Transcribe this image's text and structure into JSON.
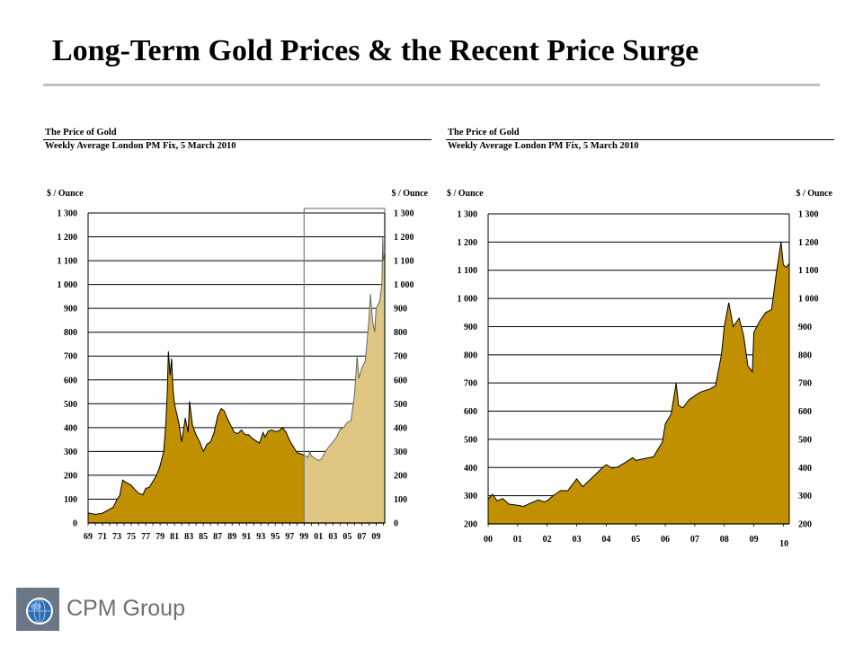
{
  "slide": {
    "title": "Long-Term Gold Prices & the Recent Price Surge"
  },
  "colors": {
    "gold_fill": "#c09000",
    "gold_fill_light": "#dfc683",
    "highlight_box": "#7f7f7f",
    "title_rule": "#bfbfbf",
    "logo_square": "#6b7785",
    "logo_globe": "#2f6db3",
    "logo_text": "#6b6f73"
  },
  "logo": {
    "text": "CPM Group",
    "icon": "globe-icon"
  },
  "chart_data": [
    {
      "type": "area",
      "title": "The Price of Gold",
      "subtitle": "Weekly Average London PM Fix, 5 March 2010",
      "ylabel_left": "$ / Ounce",
      "ylabel_right": "$ / Ounce",
      "ylim": [
        0,
        1300
      ],
      "yticks": [
        0,
        100,
        200,
        300,
        400,
        500,
        600,
        700,
        800,
        900,
        1000,
        1100,
        1200,
        1300
      ],
      "ytick_labels": [
        "0",
        "100",
        "200",
        "300",
        "400",
        "500",
        "600",
        "700",
        "800",
        "900",
        "1 000",
        "1 100",
        "1 200",
        "1 300"
      ],
      "xlim": [
        1969,
        2010.2
      ],
      "xtick_labels": [
        "69",
        "71",
        "73",
        "75",
        "77",
        "79",
        "81",
        "83",
        "85",
        "87",
        "89",
        "91",
        "93",
        "95",
        "97",
        "99",
        "01",
        "03",
        "05",
        "07",
        "09"
      ],
      "grid": true,
      "highlight": {
        "x_from": 1999.0,
        "x_to": 2010.2
      },
      "x": [
        1969.0,
        1970.0,
        1971.0,
        1972.0,
        1972.5,
        1973.0,
        1973.4,
        1973.8,
        1974.3,
        1974.9,
        1975.5,
        1976.0,
        1976.6,
        1977.0,
        1977.5,
        1978.0,
        1978.5,
        1979.0,
        1979.5,
        1979.8,
        1980.0,
        1980.15,
        1980.4,
        1980.6,
        1980.8,
        1981.0,
        1981.3,
        1981.6,
        1982.0,
        1982.5,
        1982.9,
        1983.1,
        1983.5,
        1984.0,
        1984.5,
        1985.0,
        1985.5,
        1986.0,
        1986.5,
        1987.0,
        1987.5,
        1987.9,
        1988.3,
        1988.8,
        1989.3,
        1989.8,
        1990.3,
        1990.8,
        1991.3,
        1991.8,
        1992.3,
        1992.8,
        1993.3,
        1993.6,
        1994.0,
        1994.5,
        1995.0,
        1995.5,
        1996.0,
        1996.5,
        1997.0,
        1997.5,
        1998.0,
        1998.5,
        1999.0,
        1999.5,
        1999.8,
        2000.0,
        2000.5,
        2001.0,
        2001.4,
        2002.0,
        2002.5,
        2003.0,
        2003.5,
        2004.0,
        2004.5,
        2005.0,
        2005.5,
        2006.0,
        2006.37,
        2006.6,
        2007.0,
        2007.5,
        2008.0,
        2008.2,
        2008.5,
        2008.8,
        2009.0,
        2009.5,
        2009.8,
        2009.92,
        2010.0,
        2010.1,
        2010.2
      ],
      "values": [
        42,
        36,
        41,
        58,
        66,
        98,
        115,
        180,
        170,
        160,
        140,
        125,
        118,
        145,
        150,
        175,
        200,
        240,
        300,
        420,
        550,
        720,
        620,
        690,
        560,
        500,
        460,
        420,
        340,
        440,
        380,
        510,
        410,
        370,
        340,
        300,
        330,
        340,
        380,
        450,
        480,
        470,
        440,
        410,
        380,
        375,
        390,
        370,
        370,
        355,
        345,
        335,
        380,
        360,
        385,
        390,
        384,
        386,
        400,
        380,
        345,
        320,
        295,
        290,
        285,
        275,
        300,
        282,
        272,
        262,
        268,
        302,
        322,
        340,
        360,
        392,
        400,
        422,
        430,
        540,
        700,
        605,
        650,
        680,
        850,
        960,
        850,
        800,
        900,
        930,
        1000,
        1200,
        1100,
        1120,
        1125
      ]
    },
    {
      "type": "area",
      "title": "The Price of Gold",
      "subtitle": "Weekly Average London PM Fix, 5 March 2010",
      "ylabel_left": "$ / Ounce",
      "ylabel_right": "$ / Ounce",
      "ylim": [
        200,
        1300
      ],
      "yticks": [
        200,
        300,
        400,
        500,
        600,
        700,
        800,
        900,
        1000,
        1100,
        1200,
        1300
      ],
      "ytick_labels": [
        "200",
        "300",
        "400",
        "500",
        "600",
        "700",
        "800",
        "900",
        "1 000",
        "1 100",
        "1 200",
        "1 300"
      ],
      "xlim": [
        2000.0,
        2010.2
      ],
      "xtick_labels": [
        "00",
        "01",
        "02",
        "03",
        "04",
        "05",
        "06",
        "07",
        "08",
        "09",
        "10"
      ],
      "grid": true,
      "x": [
        2000.0,
        2000.15,
        2000.3,
        2000.5,
        2000.7,
        2001.0,
        2001.2,
        2001.4,
        2001.7,
        2001.9,
        2002.0,
        2002.2,
        2002.45,
        2002.7,
        2003.0,
        2003.2,
        2003.4,
        2003.6,
        2003.9,
        2004.0,
        2004.2,
        2004.4,
        2004.6,
        2004.9,
        2005.0,
        2005.3,
        2005.6,
        2005.9,
        2006.0,
        2006.2,
        2006.37,
        2006.45,
        2006.6,
        2006.8,
        2007.0,
        2007.2,
        2007.5,
        2007.7,
        2007.9,
        2008.0,
        2008.15,
        2008.3,
        2008.5,
        2008.65,
        2008.8,
        2008.95,
        2009.0,
        2009.2,
        2009.4,
        2009.6,
        2009.75,
        2009.92,
        2010.0,
        2010.1,
        2010.2
      ],
      "values": [
        288,
        305,
        282,
        290,
        270,
        266,
        262,
        272,
        285,
        278,
        282,
        300,
        318,
        318,
        360,
        332,
        352,
        372,
        402,
        410,
        398,
        402,
        415,
        435,
        425,
        432,
        438,
        490,
        555,
        590,
        700,
        620,
        612,
        640,
        655,
        668,
        678,
        690,
        800,
        900,
        985,
        900,
        930,
        870,
        760,
        740,
        880,
        920,
        950,
        960,
        1080,
        1200,
        1120,
        1110,
        1125
      ]
    }
  ]
}
